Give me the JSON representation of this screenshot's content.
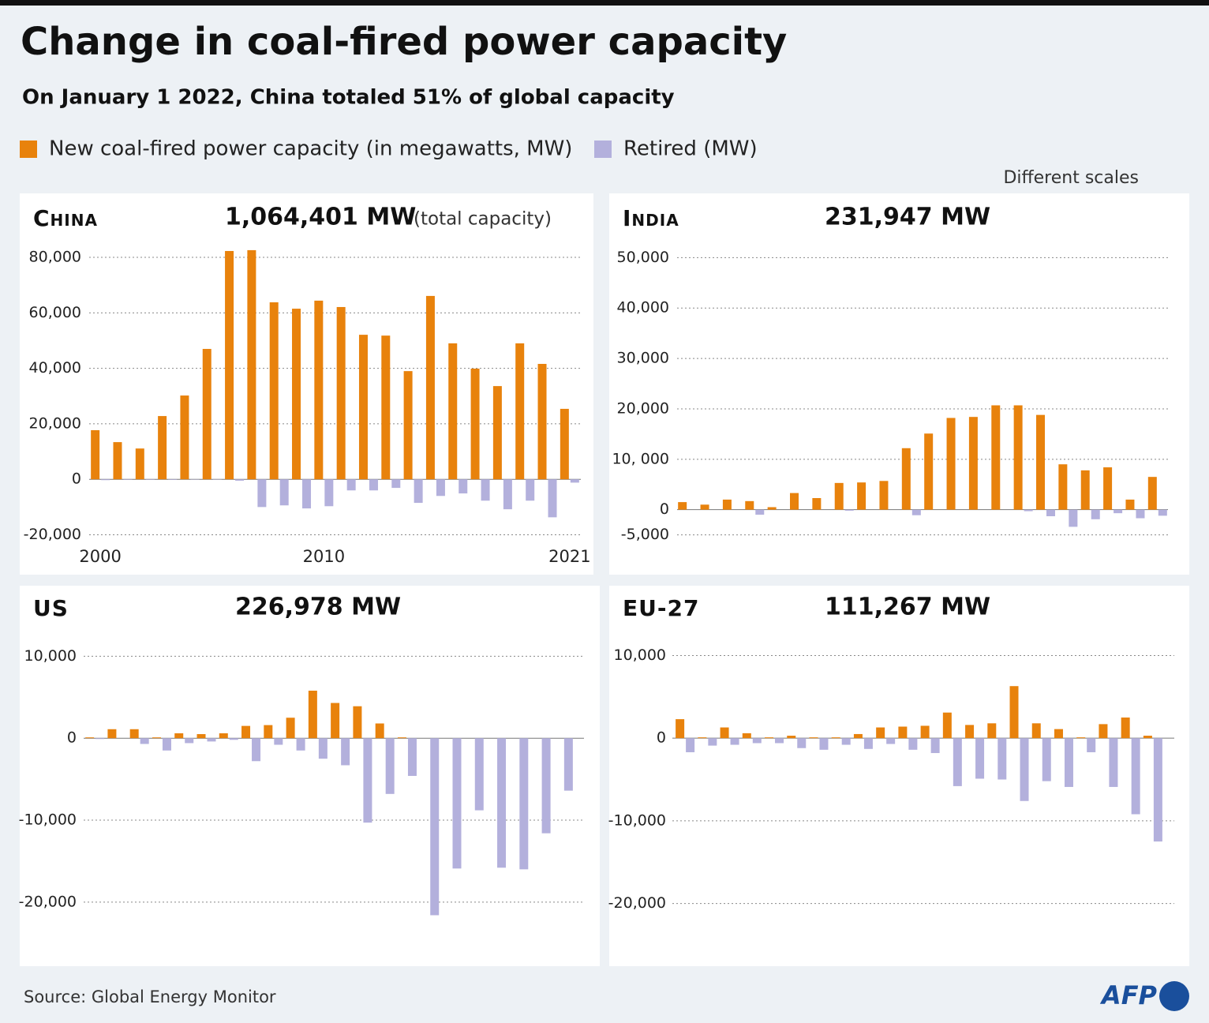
{
  "title": "Change in coal-fired power capacity",
  "subtitle": "On January 1 2022, China totaled 51% of global capacity",
  "note": "Different scales",
  "source": "Source: Global Energy Monitor",
  "logo": "AFP",
  "chart_data": [
    {
      "type": "bar",
      "title": "China",
      "total": "1,064,401 MW",
      "total_note": "(total capacity)",
      "x": [
        2000,
        2001,
        2002,
        2003,
        2004,
        2005,
        2006,
        2007,
        2008,
        2009,
        2010,
        2011,
        2012,
        2013,
        2014,
        2015,
        2016,
        2017,
        2018,
        2019,
        2020,
        2021
      ],
      "xlim": [
        1999.5,
        2021.5
      ],
      "xticks": [
        2000,
        2010,
        2021
      ],
      "ylim": [
        -21000,
        84000
      ],
      "yticks": [
        {
          "value": -20000,
          "label": "-20,000"
        },
        0,
        {
          "value": 20000,
          "label": "20,000"
        },
        {
          "value": 40000,
          "label": "40,000"
        },
        {
          "value": 60000,
          "label": "60,000"
        },
        {
          "value": 80000,
          "label": "80,000"
        }
      ],
      "grid": true,
      "series": [
        {
          "name": "New coal-fired power capacity (in megawatts, MW)",
          "color": "#e8820c",
          "values": [
            17700,
            13400,
            11100,
            22800,
            30200,
            47000,
            82300,
            82600,
            63800,
            61500,
            64400,
            62100,
            52100,
            51800,
            39000,
            66100,
            49000,
            39900,
            33600,
            49000,
            41600,
            25400
          ]
        },
        {
          "name": "Retired (MW)",
          "color": "#b3b0dc",
          "values": [
            -300,
            -200,
            -200,
            -200,
            -100,
            -100,
            -500,
            -10000,
            -9400,
            -10500,
            -9700,
            -4000,
            -4000,
            -3100,
            -8500,
            -6000,
            -5100,
            -7700,
            -10800,
            -7700,
            -13700,
            -1200
          ]
        }
      ]
    },
    {
      "type": "bar",
      "title": "India",
      "total": "231,947 MW",
      "categories": [
        null,
        null,
        null,
        null,
        null,
        null,
        null,
        null,
        null,
        null,
        null,
        null,
        null,
        null,
        null,
        null,
        null,
        null,
        null,
        null,
        null,
        null
      ],
      "ylim": [
        -6000,
        51000
      ],
      "yticks": [
        {
          "value": -5000,
          "label": "-5,000"
        },
        0,
        {
          "value": 10000,
          "label": "10, 000"
        },
        {
          "value": 20000,
          "label": "20,000"
        },
        {
          "value": 30000,
          "label": "30,000"
        },
        {
          "value": 40000,
          "label": "40,000"
        },
        {
          "value": 50000,
          "label": "50,000"
        }
      ],
      "grid": true,
      "series": [
        {
          "color": "#e8820c",
          "values": [
            1500,
            1000,
            2000,
            1700,
            500,
            3300,
            2300,
            5300,
            5400,
            5700,
            12200,
            15100,
            18200,
            18400,
            20700,
            20700,
            18800,
            9000,
            7800,
            8400,
            2000,
            6500
          ]
        },
        {
          "color": "#b3b0dc",
          "values": [
            0,
            0,
            0,
            -1000,
            0,
            0,
            0,
            -200,
            0,
            0,
            -1100,
            0,
            0,
            0,
            0,
            -300,
            -1300,
            -3400,
            -1900,
            -700,
            -1700,
            -1200
          ]
        }
      ]
    },
    {
      "type": "bar",
      "title": "US",
      "total": "226,978 MW",
      "categories": [
        null,
        null,
        null,
        null,
        null,
        null,
        null,
        null,
        null,
        null,
        null,
        null,
        null,
        null,
        null,
        null,
        null,
        null,
        null,
        null,
        null,
        null
      ],
      "ylim": [
        -23000,
        11000
      ],
      "yticks": [
        {
          "value": -20000,
          "label": "-20,000"
        },
        {
          "value": -10000,
          "label": "-10,000"
        },
        0,
        {
          "value": 10000,
          "label": "10,000"
        }
      ],
      "grid": true,
      "series": [
        {
          "color": "#e8820c",
          "values": [
            100,
            1100,
            1100,
            100,
            600,
            500,
            600,
            1500,
            1600,
            2500,
            5800,
            4300,
            3900,
            1800,
            100,
            0,
            0,
            0,
            0,
            0,
            0,
            0
          ]
        },
        {
          "color": "#b3b0dc",
          "values": [
            -100,
            0,
            -700,
            -1500,
            -600,
            -400,
            -200,
            -2800,
            -800,
            -1500,
            -2500,
            -3300,
            -10300,
            -6800,
            -4600,
            -21600,
            -15900,
            -8800,
            -15800,
            -16000,
            -11600,
            -6400
          ]
        }
      ]
    },
    {
      "type": "bar",
      "title": "EU-27",
      "total": "111,267 MW",
      "categories": [
        null,
        null,
        null,
        null,
        null,
        null,
        null,
        null,
        null,
        null,
        null,
        null,
        null,
        null,
        null,
        null,
        null,
        null,
        null,
        null,
        null,
        null
      ],
      "ylim": [
        -23000,
        11000
      ],
      "yticks": [
        {
          "value": -20000,
          "label": "-20,000"
        },
        {
          "value": -10000,
          "label": "-10,000"
        },
        0,
        {
          "value": 10000,
          "label": "10,000"
        }
      ],
      "grid": true,
      "series": [
        {
          "color": "#e8820c",
          "values": [
            2300,
            100,
            1300,
            600,
            100,
            300,
            100,
            100,
            500,
            1300,
            1400,
            1500,
            3100,
            1600,
            1800,
            6300,
            1800,
            1100,
            100,
            1700,
            2500,
            300
          ]
        },
        {
          "color": "#b3b0dc",
          "values": [
            -1700,
            -900,
            -800,
            -600,
            -600,
            -1200,
            -1400,
            -800,
            -1300,
            -700,
            -1400,
            -1800,
            -5800,
            -4900,
            -5000,
            -7600,
            -5200,
            -5900,
            -1700,
            -5900,
            -9200,
            -12500
          ]
        }
      ]
    }
  ]
}
